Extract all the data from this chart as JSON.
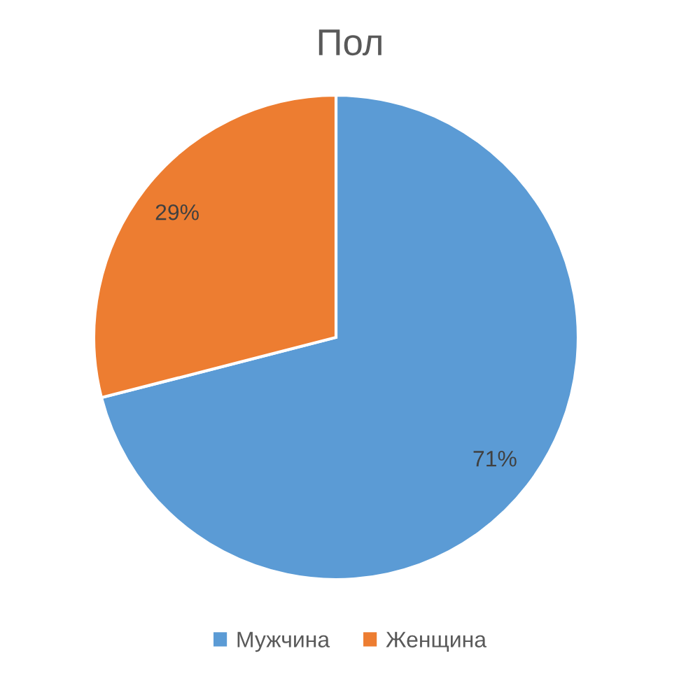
{
  "chart_data": {
    "type": "pie",
    "title": "Пол",
    "categories": [
      "Мужчина",
      "Женщина"
    ],
    "values": [
      71,
      29
    ],
    "colors": [
      "#5b9bd5",
      "#ed7d31"
    ],
    "value_labels": [
      "71%",
      "29%"
    ],
    "legend": "bottom"
  }
}
